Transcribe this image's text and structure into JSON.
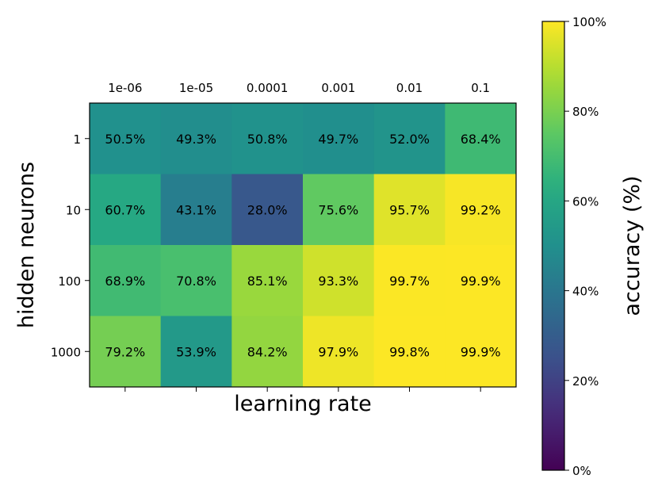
{
  "chart_data": {
    "type": "heatmap",
    "title": "",
    "xlabel": "learning rate",
    "ylabel": "hidden neurons",
    "x_categories": [
      "1e-06",
      "1e-05",
      "0.0001",
      "0.001",
      "0.01",
      "0.1"
    ],
    "y_categories": [
      "1",
      "10",
      "100",
      "1000"
    ],
    "values": [
      [
        50.5,
        49.3,
        50.8,
        49.7,
        52.0,
        68.4
      ],
      [
        60.7,
        43.1,
        28.0,
        75.6,
        95.7,
        99.2
      ],
      [
        68.9,
        70.8,
        85.1,
        93.3,
        99.7,
        99.9
      ],
      [
        79.2,
        53.9,
        84.2,
        97.9,
        99.8,
        99.9
      ]
    ],
    "value_labels": [
      [
        "50.5%",
        "49.3%",
        "50.8%",
        "49.7%",
        "52.0%",
        "68.4%"
      ],
      [
        "60.7%",
        "43.1%",
        "28.0%",
        "75.6%",
        "95.7%",
        "99.2%"
      ],
      [
        "68.9%",
        "70.8%",
        "85.1%",
        "93.3%",
        "99.7%",
        "99.9%"
      ],
      [
        "79.2%",
        "53.9%",
        "84.2%",
        "97.9%",
        "99.8%",
        "99.9%"
      ]
    ],
    "colormap": "viridis",
    "colorbar": {
      "label": "accuracy (%)",
      "range": [
        0,
        100
      ],
      "ticks": [
        0,
        20,
        40,
        60,
        80,
        100
      ],
      "tick_labels": [
        "0%",
        "20%",
        "40%",
        "60%",
        "80%",
        "100%"
      ]
    }
  }
}
